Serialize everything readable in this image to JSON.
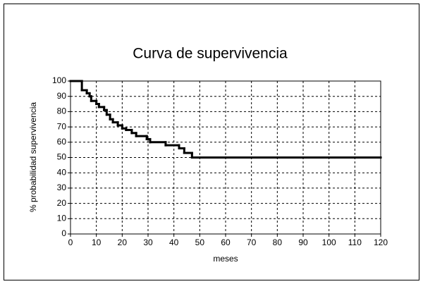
{
  "chart_data": {
    "type": "step",
    "title": "Curva de supervivencia",
    "x_label": "meses",
    "y_label": "% probabilidad supervivencia",
    "x": [
      0,
      4.4,
      6.3,
      7.4,
      8,
      10,
      11,
      13,
      14,
      15.3,
      16.4,
      18.3,
      20,
      21.5,
      23.7,
      25.4,
      29.5,
      30.8,
      36.8,
      42,
      44,
      47,
      120
    ],
    "values": [
      100,
      94,
      92,
      90,
      87,
      85,
      83,
      81,
      78,
      75,
      73,
      71,
      69,
      68,
      66,
      64,
      62,
      60,
      58,
      56,
      53,
      50,
      50
    ],
    "color": "#000000",
    "xlim": [
      0,
      120
    ],
    "ylim": [
      0,
      100
    ],
    "xticks": [
      0,
      10,
      20,
      30,
      40,
      50,
      60,
      70,
      80,
      90,
      100,
      110,
      120
    ],
    "yticks": [
      0,
      10,
      20,
      30,
      40,
      50,
      60,
      70,
      80,
      90,
      100
    ],
    "grid": true
  }
}
